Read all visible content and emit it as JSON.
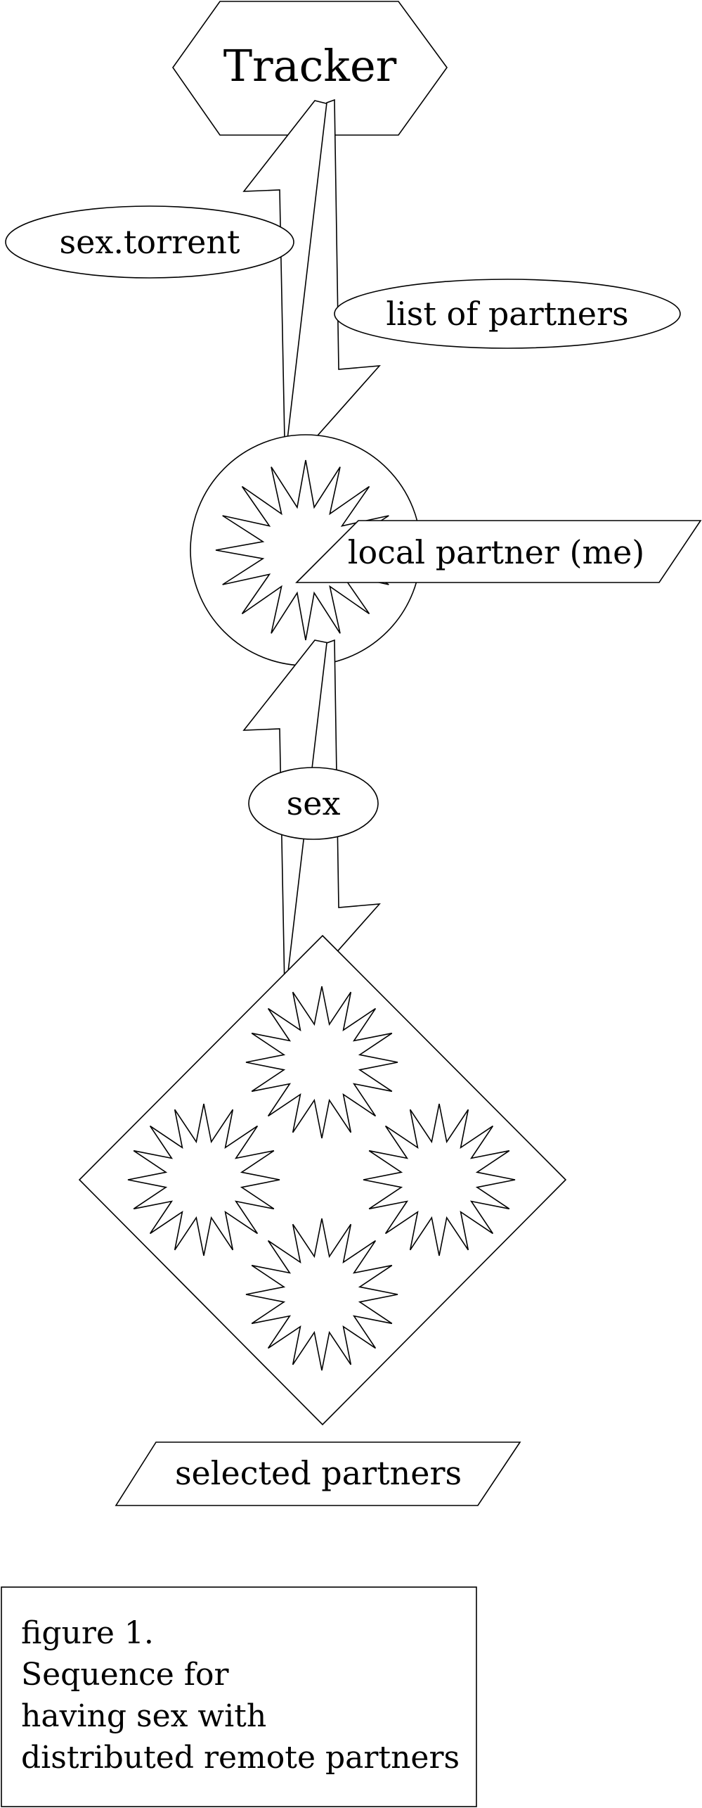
{
  "nodes": {
    "tracker": "Tracker",
    "torrent": "sex.torrent",
    "partners_list": "list of partners",
    "local_partner": "local partner (me)",
    "sex": "sex",
    "selected_partners": "selected partners"
  },
  "caption": {
    "line1": "figure 1.",
    "line2": "Sequence for",
    "line3": "having sex with",
    "line4": "distributed remote partners"
  }
}
